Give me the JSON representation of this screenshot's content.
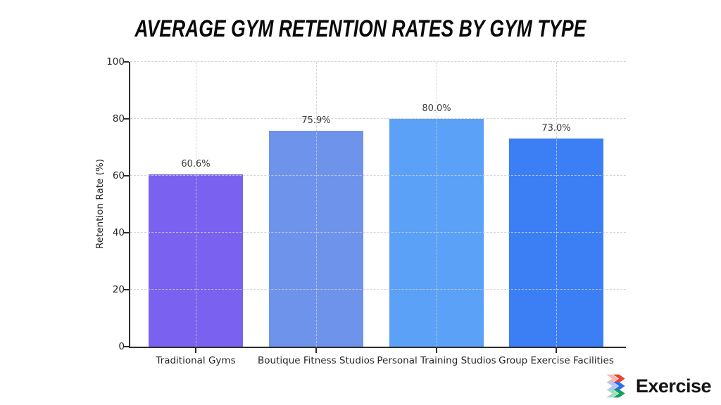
{
  "title": "AVERAGE GYM RETENTION RATES BY GYM TYPE",
  "chart_data": {
    "type": "bar",
    "title": "Average Gym Retention Rates by Gym Type",
    "categories": [
      "Traditional Gyms",
      "Boutique Fitness Studios",
      "Personal Training Studios",
      "Group Exercise Facilities"
    ],
    "values": [
      60.6,
      75.9,
      80.0,
      73.0
    ],
    "value_labels": [
      "60.6%",
      "75.9%",
      "80.0%",
      "73.0%"
    ],
    "bar_colors": [
      "#7b61f0",
      "#6e93ea",
      "#5ba1f7",
      "#3c7ff4"
    ],
    "xlabel": "",
    "ylabel": "Retention Rate (%)",
    "ylim": [
      0,
      100
    ],
    "yticks": [
      0,
      20,
      40,
      60,
      80,
      100
    ],
    "grid": "dashed horizontal at yticks and dashed vertical at category centers, drawn over bars",
    "legend_position": "none",
    "background": "#ffffff"
  },
  "logo": {
    "text": "Exercise",
    "icon": "tri-chevron-icon",
    "icon_colors": [
      "#e8432f",
      "#2f6bf6",
      "#12a05f"
    ]
  }
}
